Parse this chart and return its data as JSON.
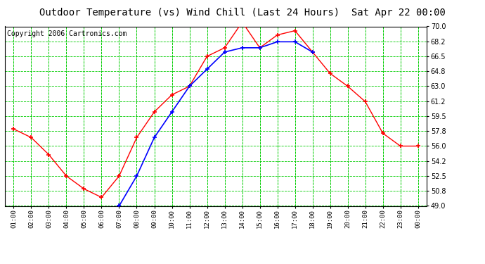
{
  "title": "Outdoor Temperature (vs) Wind Chill (Last 24 Hours)  Sat Apr 22 00:00",
  "copyright": "Copyright 2006 Cartronics.com",
  "x_labels": [
    "01:00",
    "02:00",
    "03:00",
    "04:00",
    "05:00",
    "06:00",
    "07:00",
    "08:00",
    "09:00",
    "10:00",
    "11:00",
    "12:00",
    "13:00",
    "14:00",
    "15:00",
    "16:00",
    "17:00",
    "18:00",
    "19:00",
    "20:00",
    "21:00",
    "22:00",
    "23:00",
    "00:00"
  ],
  "temp_data": [
    58.0,
    57.0,
    55.0,
    52.5,
    51.0,
    50.0,
    52.5,
    57.0,
    60.0,
    62.0,
    63.0,
    66.5,
    67.5,
    70.5,
    67.5,
    69.0,
    69.5,
    67.0,
    64.5,
    63.0,
    61.2,
    57.5,
    56.0,
    56.0
  ],
  "windchill_data": [
    null,
    null,
    null,
    null,
    null,
    null,
    49.0,
    52.5,
    57.0,
    60.0,
    63.0,
    65.0,
    67.0,
    67.5,
    67.5,
    68.2,
    68.2,
    67.0,
    null,
    null,
    null,
    null,
    null,
    null
  ],
  "temp_color": "#ff0000",
  "windchill_color": "#0000ff",
  "grid_color": "#00cc00",
  "bg_color": "#ffffff",
  "plot_bg": "#ffffff",
  "ylim_min": 49.0,
  "ylim_max": 70.0,
  "yticks": [
    49.0,
    50.8,
    52.5,
    54.2,
    56.0,
    57.8,
    59.5,
    61.2,
    63.0,
    64.8,
    66.5,
    68.2,
    70.0
  ],
  "title_fontsize": 10,
  "copyright_fontsize": 7
}
